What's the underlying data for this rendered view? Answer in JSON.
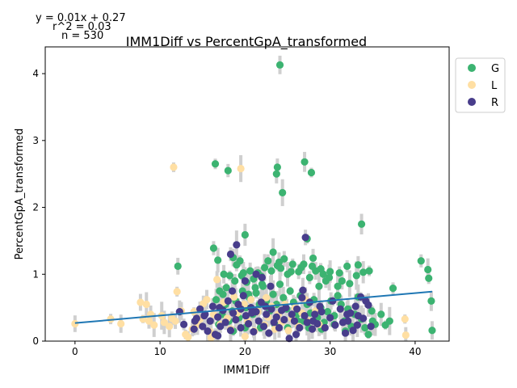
{
  "chart_data": {
    "type": "scatter",
    "title": "IMM1Diff vs PercentGpA_transformed",
    "xlabel": "IMM1Diff",
    "ylabel": "PercentGpA_transformed",
    "xlim": [
      -3.5,
      44
    ],
    "ylim": [
      0,
      4.4
    ],
    "xticks": [
      0,
      10,
      20,
      30,
      40
    ],
    "yticks": [
      0,
      1,
      2,
      3,
      4
    ],
    "annotations": [
      "y = 0.01x + 0.27",
      "r^2 = 0.03",
      "n = 530"
    ],
    "legend": {
      "placement": "outside-top-right",
      "entries": [
        "G",
        "L",
        "R"
      ]
    },
    "regression": {
      "slope": 0.0112,
      "intercept": 0.27,
      "x_range": [
        0,
        42
      ],
      "color": "#1f77b4"
    },
    "series": [
      {
        "name": "G",
        "color": "#3cb371",
        "points": [
          [
            24.1,
            4.13
          ],
          [
            27.0,
            2.68
          ],
          [
            16.5,
            2.65
          ],
          [
            18.0,
            2.55
          ],
          [
            23.8,
            2.6
          ],
          [
            23.7,
            2.5
          ],
          [
            27.8,
            2.52
          ],
          [
            24.4,
            2.22
          ],
          [
            33.7,
            1.75
          ],
          [
            12.1,
            1.12
          ],
          [
            16.3,
            1.39
          ],
          [
            16.8,
            1.21
          ],
          [
            20.0,
            1.59
          ],
          [
            27.3,
            1.53
          ],
          [
            28.0,
            1.24
          ],
          [
            40.7,
            1.2
          ],
          [
            41.5,
            1.07
          ],
          [
            41.6,
            0.94
          ],
          [
            41.9,
            0.6
          ],
          [
            42.0,
            0.16
          ],
          [
            37.4,
            0.79
          ],
          [
            36.5,
            0.24
          ],
          [
            37.0,
            0.3
          ],
          [
            35.0,
            0.3
          ],
          [
            34.6,
            1.05
          ],
          [
            33.3,
            1.14
          ],
          [
            33.1,
            0.98
          ],
          [
            32.0,
            1.12
          ],
          [
            31.4,
            0.9
          ],
          [
            30.9,
            0.68
          ],
          [
            30.0,
            1.04
          ],
          [
            29.5,
            0.9
          ],
          [
            29.2,
            1.0
          ],
          [
            28.7,
            0.82
          ],
          [
            28.3,
            1.05
          ],
          [
            27.6,
            0.95
          ],
          [
            26.9,
            1.15
          ],
          [
            26.3,
            1.04
          ],
          [
            25.6,
            1.15
          ],
          [
            25.0,
            1.0
          ],
          [
            24.6,
            1.23
          ],
          [
            24.2,
            1.09
          ],
          [
            23.8,
            1.13
          ],
          [
            23.3,
            1.33
          ],
          [
            22.7,
            1.2
          ],
          [
            22.3,
            1.1
          ],
          [
            21.9,
            0.97
          ],
          [
            21.5,
            1.02
          ],
          [
            21.0,
            0.93
          ],
          [
            20.6,
            1.05
          ],
          [
            20.2,
            0.88
          ],
          [
            19.8,
            1.02
          ],
          [
            19.4,
            1.2
          ],
          [
            19.0,
            1.14
          ],
          [
            18.6,
            1.25
          ],
          [
            18.2,
            0.98
          ],
          [
            17.8,
            0.8
          ],
          [
            17.4,
            0.7
          ],
          [
            17.0,
            0.75
          ],
          [
            16.6,
            0.62
          ],
          [
            16.9,
            0.25
          ],
          [
            17.3,
            0.4
          ],
          [
            17.7,
            0.55
          ],
          [
            18.1,
            0.3
          ],
          [
            18.5,
            0.45
          ],
          [
            18.9,
            0.6
          ],
          [
            19.3,
            0.35
          ],
          [
            19.7,
            0.75
          ],
          [
            20.1,
            0.5
          ],
          [
            20.5,
            0.65
          ],
          [
            20.9,
            0.4
          ],
          [
            21.3,
            0.72
          ],
          [
            21.7,
            0.55
          ],
          [
            22.1,
            0.82
          ],
          [
            22.5,
            0.6
          ],
          [
            22.9,
            0.45
          ],
          [
            23.3,
            0.7
          ],
          [
            23.7,
            0.55
          ],
          [
            24.1,
            0.85
          ],
          [
            24.5,
            0.65
          ],
          [
            24.9,
            0.48
          ],
          [
            25.3,
            0.75
          ],
          [
            25.7,
            0.58
          ],
          [
            26.1,
            0.4
          ],
          [
            26.5,
            0.68
          ],
          [
            26.9,
            0.3
          ],
          [
            27.3,
            0.55
          ],
          [
            27.7,
            0.42
          ],
          [
            28.1,
            0.62
          ],
          [
            28.5,
            0.35
          ],
          [
            28.9,
            0.5
          ],
          [
            29.3,
            0.28
          ],
          [
            29.7,
            0.44
          ],
          [
            30.1,
            0.6
          ],
          [
            30.5,
            0.38
          ],
          [
            30.9,
            0.82
          ],
          [
            31.3,
            0.55
          ],
          [
            31.7,
            0.3
          ],
          [
            32.1,
            0.48
          ],
          [
            32.5,
            0.22
          ],
          [
            32.9,
            0.4
          ],
          [
            33.3,
            0.66
          ],
          [
            33.7,
            0.33
          ],
          [
            34.1,
            0.2
          ],
          [
            34.5,
            0.1
          ],
          [
            34.9,
            0.45
          ],
          [
            35.3,
            0.25
          ],
          [
            36.0,
            0.4
          ],
          [
            33.9,
            1.03
          ],
          [
            32.3,
            0.86
          ],
          [
            31.1,
            1.02
          ],
          [
            29.9,
            0.95
          ],
          [
            28.9,
            1.08
          ],
          [
            27.9,
            1.12
          ],
          [
            26.6,
            1.1
          ],
          [
            25.4,
            1.04
          ],
          [
            24.0,
            1.18
          ],
          [
            23.1,
            1.05
          ],
          [
            22.0,
            0.85
          ],
          [
            21.2,
            0.8
          ],
          [
            20.4,
            0.7
          ],
          [
            19.6,
            0.98
          ],
          [
            18.8,
            0.9
          ],
          [
            17.5,
            1.0
          ],
          [
            21.8,
            0.2
          ],
          [
            23.5,
            0.25
          ],
          [
            25.0,
            0.2
          ],
          [
            26.2,
            0.3
          ],
          [
            27.5,
            0.2
          ],
          [
            29.0,
            0.18
          ],
          [
            30.5,
            0.25
          ],
          [
            31.8,
            0.15
          ],
          [
            20.0,
            0.2
          ],
          [
            18.6,
            0.15
          ]
        ]
      },
      {
        "name": "L",
        "color": "#ffdfa3",
        "points": [
          [
            0.0,
            0.26
          ],
          [
            4.2,
            0.33
          ],
          [
            5.4,
            0.26
          ],
          [
            7.7,
            0.58
          ],
          [
            8.0,
            0.33
          ],
          [
            8.4,
            0.55
          ],
          [
            8.9,
            0.4
          ],
          [
            9.3,
            0.24
          ],
          [
            8.7,
            0.3
          ],
          [
            10.2,
            0.38
          ],
          [
            10.5,
            0.28
          ],
          [
            11.1,
            0.22
          ],
          [
            11.4,
            0.34
          ],
          [
            11.8,
            0.3
          ],
          [
            11.6,
            2.6
          ],
          [
            19.5,
            2.58
          ],
          [
            12.0,
            0.74
          ],
          [
            13.0,
            0.1
          ],
          [
            13.3,
            0.06
          ],
          [
            13.8,
            0.18
          ],
          [
            14.0,
            0.44
          ],
          [
            14.4,
            0.25
          ],
          [
            14.7,
            0.33
          ],
          [
            15.1,
            0.56
          ],
          [
            15.5,
            0.62
          ],
          [
            15.9,
            0.14
          ],
          [
            16.3,
            0.4
          ],
          [
            16.7,
            0.92
          ],
          [
            17.1,
            0.25
          ],
          [
            17.5,
            0.58
          ],
          [
            17.9,
            0.34
          ],
          [
            18.3,
            0.18
          ],
          [
            18.7,
            0.66
          ],
          [
            19.1,
            0.42
          ],
          [
            19.5,
            0.2
          ],
          [
            19.9,
            0.55
          ],
          [
            20.3,
            0.3
          ],
          [
            20.7,
            0.62
          ],
          [
            21.1,
            0.15
          ],
          [
            21.5,
            0.44
          ],
          [
            21.9,
            0.58
          ],
          [
            22.3,
            0.24
          ],
          [
            22.7,
            0.36
          ],
          [
            23.1,
            0.52
          ],
          [
            23.5,
            0.18
          ],
          [
            23.9,
            0.4
          ],
          [
            24.3,
            0.28
          ],
          [
            24.7,
            0.55
          ],
          [
            25.1,
            0.16
          ],
          [
            25.5,
            0.34
          ],
          [
            25.9,
            0.5
          ],
          [
            26.3,
            0.22
          ],
          [
            26.7,
            0.42
          ],
          [
            27.1,
            0.62
          ],
          [
            27.5,
            0.3
          ],
          [
            27.9,
            0.18
          ],
          [
            28.3,
            0.45
          ],
          [
            28.7,
            0.25
          ],
          [
            38.8,
            0.33
          ],
          [
            38.9,
            0.09
          ],
          [
            12.5,
            0.45
          ],
          [
            16.0,
            0.05
          ],
          [
            20.0,
            0.07
          ],
          [
            22.5,
            0.65
          ]
        ]
      },
      {
        "name": "R",
        "color": "#483d8b",
        "points": [
          [
            12.3,
            0.44
          ],
          [
            12.8,
            0.25
          ],
          [
            14.0,
            0.18
          ],
          [
            14.3,
            0.34
          ],
          [
            14.7,
            0.48
          ],
          [
            15.0,
            0.22
          ],
          [
            15.3,
            0.4
          ],
          [
            15.6,
            0.15
          ],
          [
            15.9,
            0.3
          ],
          [
            16.2,
            0.52
          ],
          [
            16.5,
            0.1
          ],
          [
            16.8,
            0.36
          ],
          [
            17.1,
            0.22
          ],
          [
            17.4,
            0.46
          ],
          [
            17.7,
            0.28
          ],
          [
            18.0,
            0.6
          ],
          [
            18.3,
            0.16
          ],
          [
            18.6,
            0.42
          ],
          [
            18.9,
            0.32
          ],
          [
            19.2,
            0.55
          ],
          [
            19.5,
            0.2
          ],
          [
            19.8,
            0.68
          ],
          [
            20.1,
            0.38
          ],
          [
            20.4,
            0.26
          ],
          [
            20.7,
            0.5
          ],
          [
            21.0,
            0.14
          ],
          [
            21.3,
            0.44
          ],
          [
            21.6,
            0.3
          ],
          [
            21.9,
            0.58
          ],
          [
            22.2,
            0.22
          ],
          [
            22.5,
            0.4
          ],
          [
            22.8,
            0.12
          ],
          [
            23.1,
            0.48
          ],
          [
            23.4,
            0.28
          ],
          [
            23.7,
            0.36
          ],
          [
            24.0,
            0.2
          ],
          [
            24.3,
            0.46
          ],
          [
            24.6,
            0.32
          ],
          [
            25.2,
            0.04
          ],
          [
            25.8,
            0.3
          ],
          [
            26.1,
            0.48
          ],
          [
            26.4,
            0.2
          ],
          [
            26.7,
            0.65
          ],
          [
            27.0,
            0.38
          ],
          [
            27.3,
            0.28
          ],
          [
            27.6,
            0.58
          ],
          [
            27.9,
            0.18
          ],
          [
            28.2,
            0.4
          ],
          [
            28.5,
            0.26
          ],
          [
            28.8,
            0.52
          ],
          [
            29.4,
            0.2
          ],
          [
            30.0,
            0.35
          ],
          [
            30.6,
            0.24
          ],
          [
            31.2,
            0.48
          ],
          [
            31.8,
            0.12
          ],
          [
            32.1,
            0.3
          ],
          [
            32.4,
            0.42
          ],
          [
            32.7,
            0.16
          ],
          [
            33.0,
            0.52
          ],
          [
            33.3,
            0.38
          ],
          [
            33.6,
            0.66
          ],
          [
            34.2,
            0.6
          ],
          [
            34.8,
            0.22
          ],
          [
            34.5,
            0.54
          ],
          [
            33.9,
            0.34
          ],
          [
            19.0,
            1.44
          ],
          [
            18.3,
            1.3
          ],
          [
            27.1,
            1.55
          ],
          [
            21.3,
            1.0
          ],
          [
            22.0,
            0.95
          ],
          [
            20.0,
            0.9
          ],
          [
            23.0,
            0.82
          ],
          [
            26.8,
            0.76
          ],
          [
            18.5,
            0.75
          ],
          [
            16.8,
            0.08
          ],
          [
            17.0,
            0.5
          ],
          [
            19.5,
            0.48
          ],
          [
            20.8,
            0.42
          ],
          [
            22.4,
            0.52
          ],
          [
            24.8,
            0.5
          ],
          [
            25.5,
            0.4
          ],
          [
            26.0,
            0.1
          ],
          [
            28.0,
            0.3
          ],
          [
            29.0,
            0.44
          ],
          [
            30.3,
            0.6
          ],
          [
            31.5,
            0.28
          ],
          [
            32.0,
            0.4
          ],
          [
            33.2,
            0.24
          ],
          [
            15.2,
            0.38
          ],
          [
            14.1,
            0.3
          ]
        ]
      }
    ]
  }
}
